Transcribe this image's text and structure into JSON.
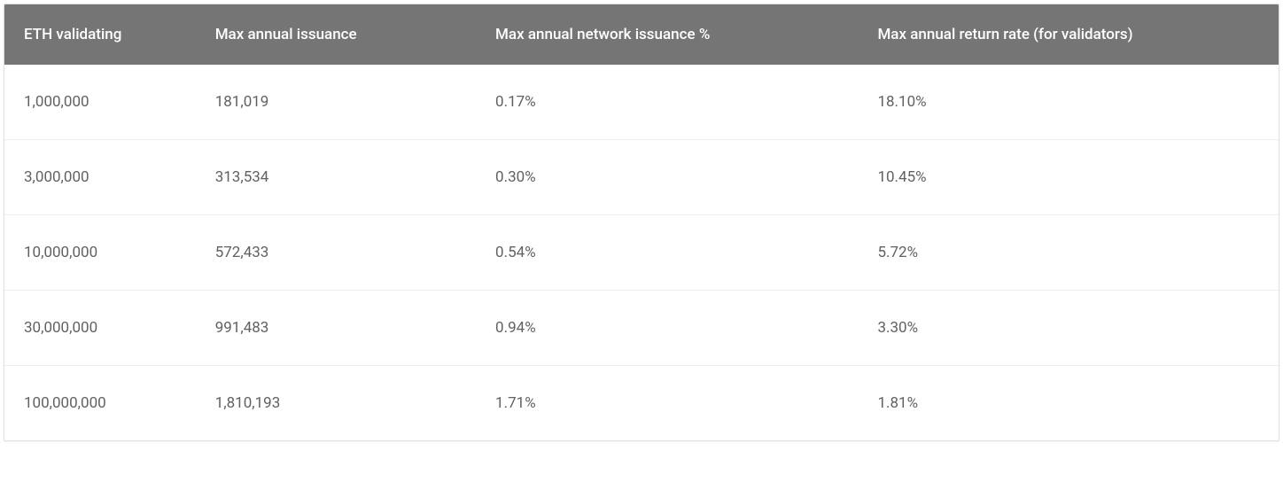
{
  "table": {
    "type": "table",
    "header_background_color": "#757575",
    "header_text_color": "#ffffff",
    "header_fontsize": 17,
    "header_fontweight": 500,
    "body_text_color": "#616161",
    "body_fontsize": 17,
    "row_border_color": "#eeeeee",
    "outer_border_color": "#e0e0e0",
    "background_color": "#ffffff",
    "column_widths_pct": [
      15,
      22,
      30,
      33
    ],
    "columns": [
      "ETH validating",
      "Max annual issuance",
      "Max annual network issuance %",
      "Max annual return rate (for validators)"
    ],
    "rows": [
      [
        "1,000,000",
        "181,019",
        "0.17%",
        "18.10%"
      ],
      [
        "3,000,000",
        "313,534",
        "0.30%",
        "10.45%"
      ],
      [
        "10,000,000",
        "572,433",
        "0.54%",
        "5.72%"
      ],
      [
        "30,000,000",
        "991,483",
        "0.94%",
        "3.30%"
      ],
      [
        "100,000,000",
        "1,810,193",
        "1.71%",
        "1.81%"
      ]
    ]
  }
}
